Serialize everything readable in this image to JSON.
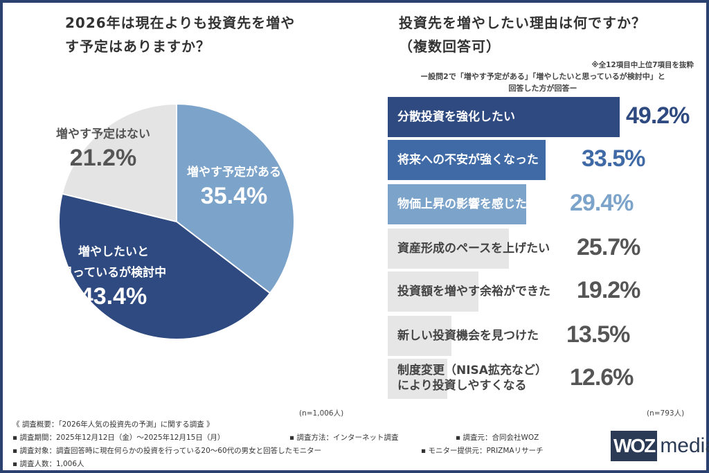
{
  "left": {
    "title": "2026年は現在よりも投資先を増やす予定はありますか？",
    "n": "(n=1,006人)"
  },
  "right": {
    "title_line1": "投資先を増やしたい理由は何ですか？",
    "title_line2": "（複数回答可）",
    "note": "※全12項目中上位7項目を抜粋",
    "subtitle_line1": "ー設問2で「増やす予定がある」「増やしたいと思っているが検討中」と",
    "subtitle_line2": "回答した方が回答ー",
    "n": "(n=793人)"
  },
  "chart_data": [
    {
      "type": "pie",
      "categories": [
        "増やす予定がある",
        "増やしたいと思っているが検討中",
        "増やす予定はない"
      ],
      "values": [
        35.4,
        43.4,
        21.2
      ],
      "labels": [
        "35.4%",
        "43.4%",
        "21.2%"
      ],
      "colors": [
        "#7ca3c9",
        "#2e4a80",
        "#e4e4e4"
      ],
      "start": "top",
      "direction": "clockwise"
    },
    {
      "type": "bar",
      "orientation": "horizontal",
      "categories": [
        "分散投資を強化したい",
        "将来への不安が強くなった",
        "物価上昇の影響を感じた",
        "資産形成のペースを上げたい",
        "投資額を増やす余裕ができた",
        "新しい投資機会を見つけた",
        "制度変更（NISA拡充など）により投資しやすくなる"
      ],
      "values": [
        49.2,
        33.5,
        29.4,
        25.7,
        19.2,
        13.5,
        12.6
      ],
      "labels": [
        "49.2%",
        "33.5%",
        "29.4%",
        "25.7%",
        "19.2%",
        "13.5%",
        "12.6%"
      ],
      "colors": [
        "#2e4a80",
        "#3f6aa6",
        "#7ca3c9",
        "#e6e6e6",
        "#e6e6e6",
        "#e6e6e6",
        "#e6e6e6"
      ],
      "value_colors": [
        "#2e4a80",
        "#3f6aa6",
        "#7ca3c9",
        "#555555",
        "#555555",
        "#555555",
        "#555555"
      ]
    }
  ],
  "survey": {
    "heading": "《 調査概要：「2026年人気の投資先の予測」に関する調査 》",
    "period": "▪ 調査期間：2025年12月12日（金）～2025年12月15日（月）",
    "method": "▪ 調査方法：インターネット調査",
    "org": "▪ 調査元：合同会社WOZ",
    "target": "▪ 調査対象：調査回答時に現在何らかの投資を行っている20～60代の男女と回答したモニター",
    "provider": "▪ モニター提供元：PRIZMAリサーチ",
    "count": "▪ 調査人数：1,006人"
  },
  "logo": {
    "mark": "WOZ",
    "text": "media"
  }
}
